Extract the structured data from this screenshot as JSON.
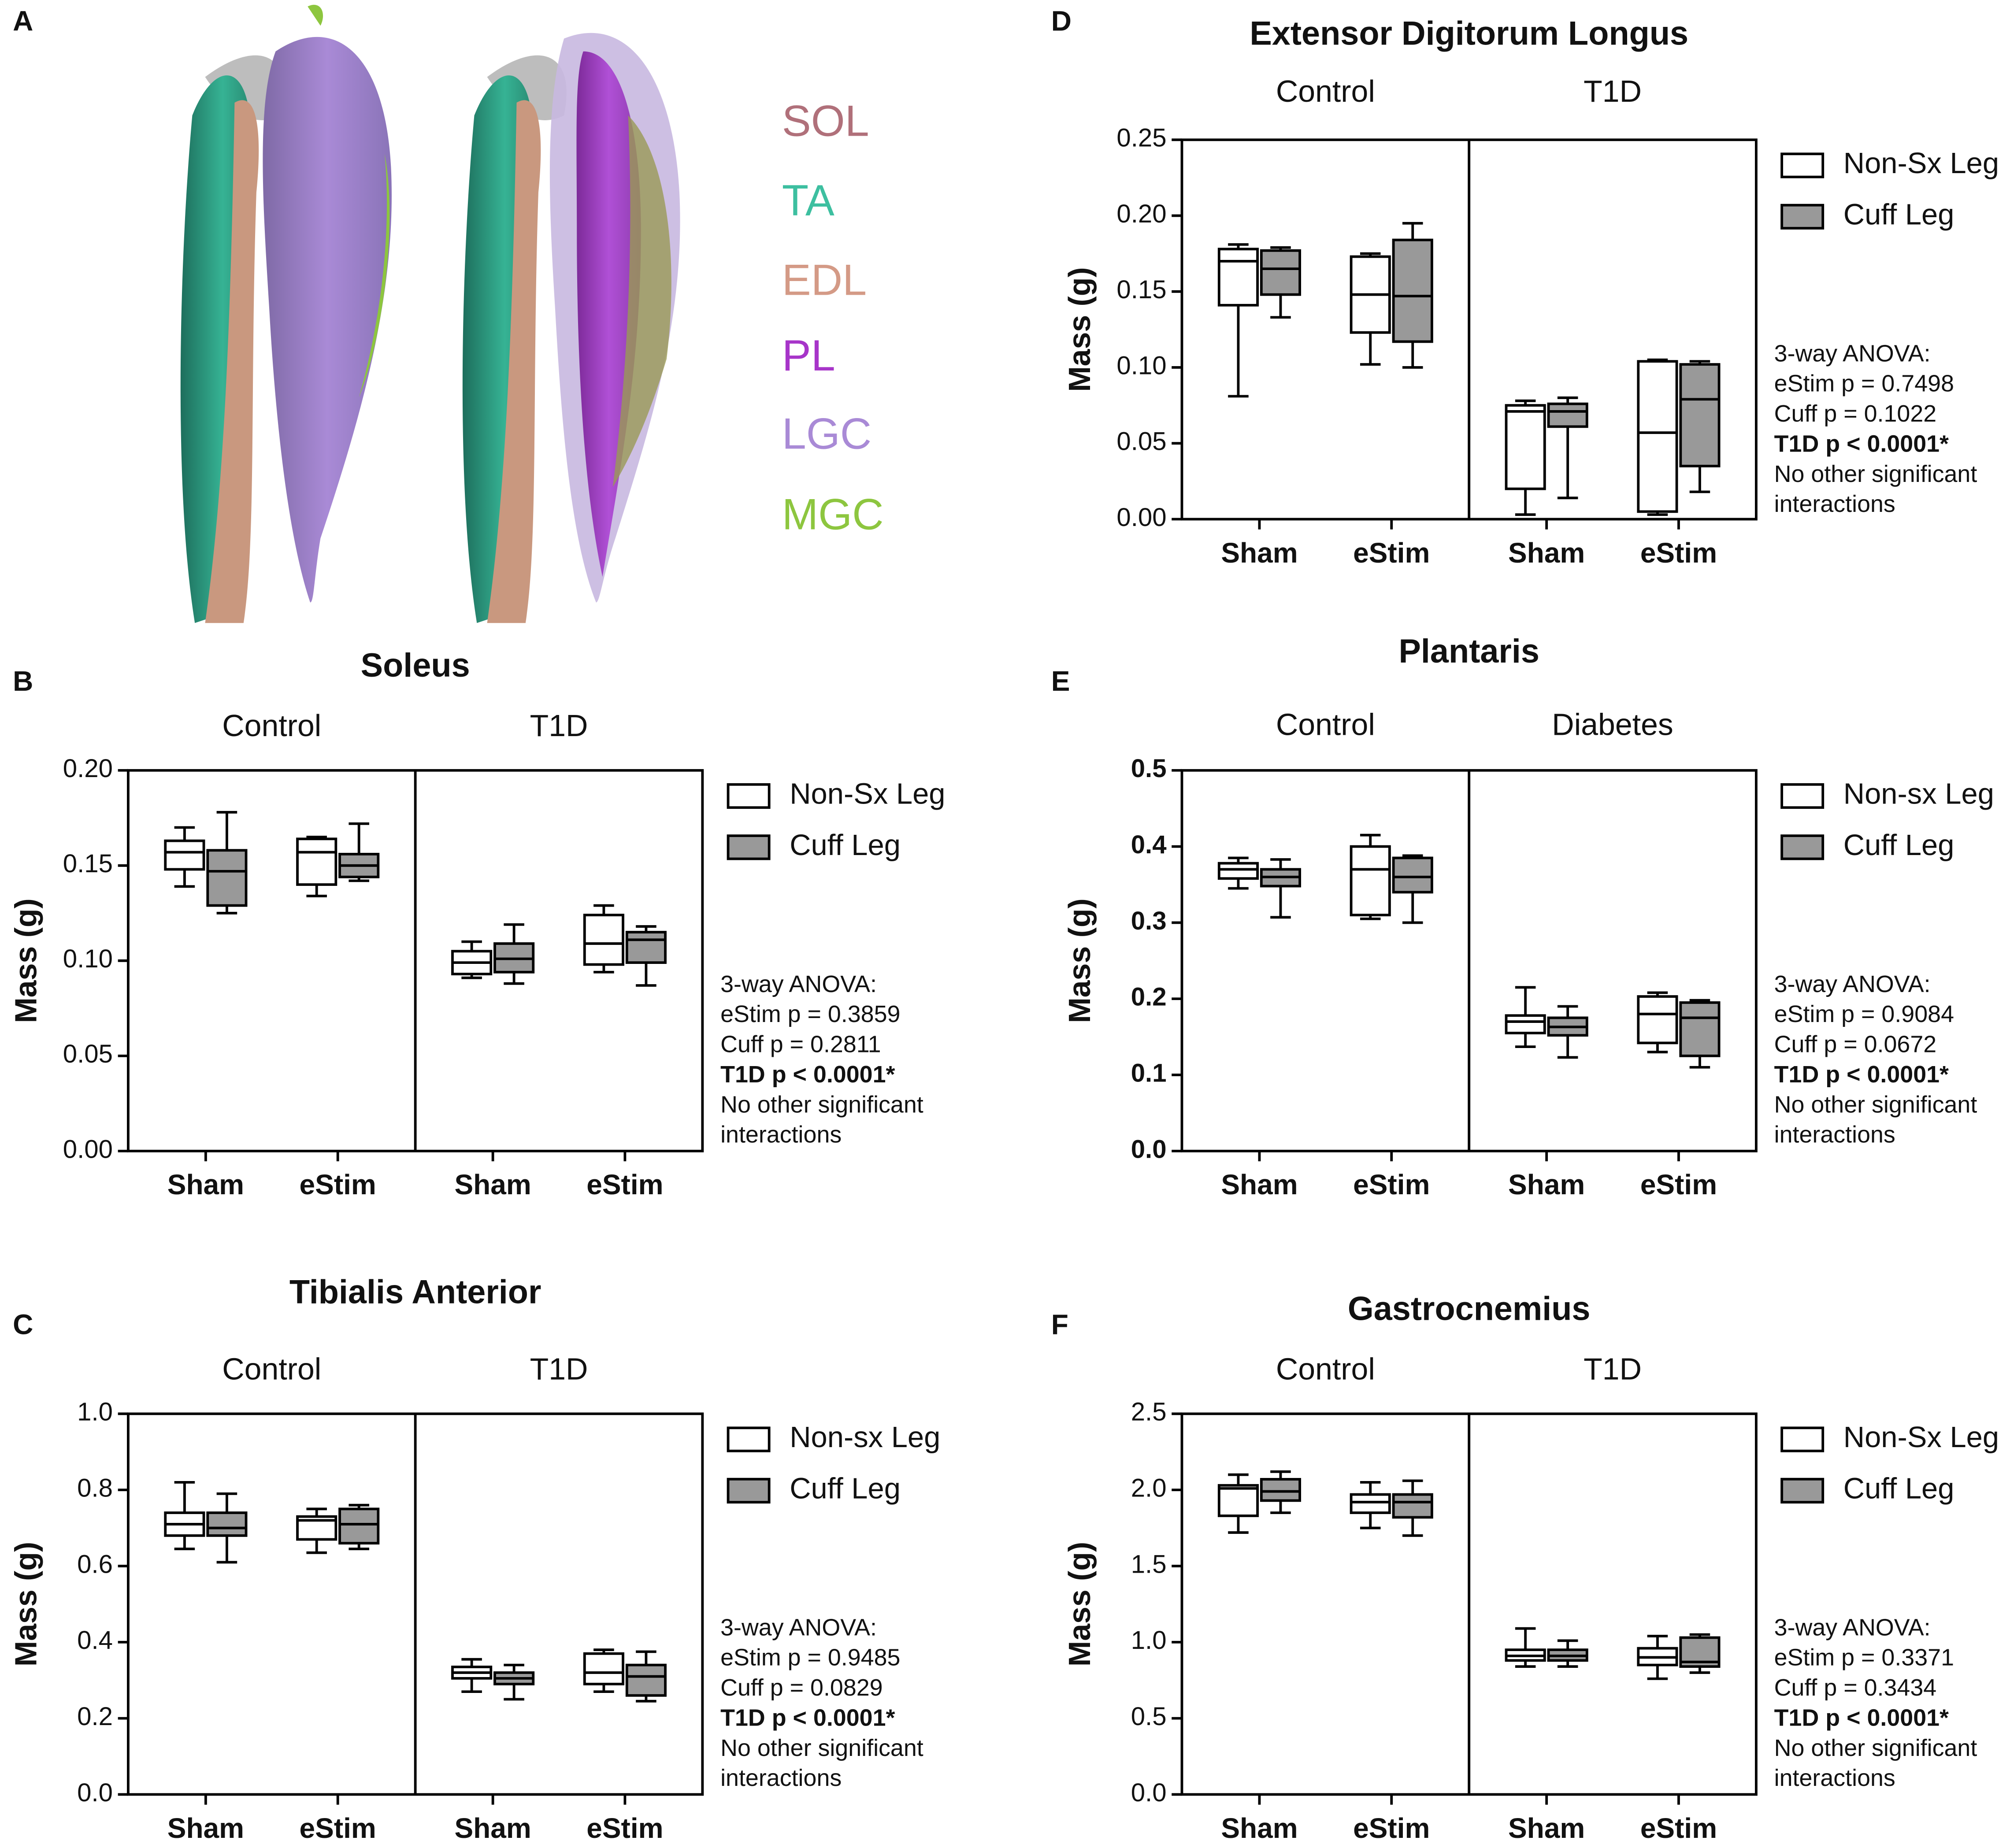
{
  "panel_a": {
    "label": "A",
    "muscles": [
      {
        "text": "SOL",
        "color": "#b0707a"
      },
      {
        "text": "TA",
        "color": "#3dbfa0"
      },
      {
        "text": "EDL",
        "color": "#d49a86"
      },
      {
        "text": "PL",
        "color": "#a735c9"
      },
      {
        "text": "LGC",
        "color": "#a98ad6"
      },
      {
        "text": "MGC",
        "color": "#8dc63f"
      }
    ]
  },
  "chart_data": [
    {
      "type": "box",
      "panel": "B",
      "title": "Soleus",
      "groups": [
        "Control",
        "T1D"
      ],
      "categories": [
        "Sham",
        "eStim",
        "Sham",
        "eStim"
      ],
      "ylabel": "Mass (g)",
      "ylim": [
        0,
        0.2
      ],
      "yticks": [
        {
          "value": 0,
          "label": "0.00"
        },
        0.05,
        {
          "value": 0.1,
          "label": "0.10"
        },
        0.15,
        {
          "value": 0.2,
          "label": "0.20"
        }
      ],
      "series": [
        {
          "name": "Non-Sx Leg",
          "color": "#ffffff",
          "boxes": [
            {
              "min": 0.139,
              "q1": 0.148,
              "median": 0.157,
              "q3": 0.163,
              "max": 0.17
            },
            {
              "min": 0.134,
              "q1": 0.14,
              "median": 0.157,
              "q3": 0.164,
              "max": 0.165
            },
            {
              "min": 0.091,
              "q1": 0.093,
              "median": 0.099,
              "q3": 0.105,
              "max": 0.11
            },
            {
              "min": 0.094,
              "q1": 0.098,
              "median": 0.109,
              "q3": 0.124,
              "max": 0.129
            }
          ]
        },
        {
          "name": "Cuff Leg",
          "color": "#999999",
          "boxes": [
            {
              "min": 0.125,
              "q1": 0.129,
              "median": 0.147,
              "q3": 0.158,
              "max": 0.178
            },
            {
              "min": 0.142,
              "q1": 0.144,
              "median": 0.15,
              "q3": 0.156,
              "max": 0.172
            },
            {
              "min": 0.088,
              "q1": 0.094,
              "median": 0.101,
              "q3": 0.109,
              "max": 0.119
            },
            {
              "min": 0.087,
              "q1": 0.099,
              "median": 0.111,
              "q3": 0.115,
              "max": 0.118
            }
          ]
        }
      ],
      "annotation": [
        {
          "text": "3-way ANOVA:"
        },
        {
          "text": "eStim p = 0.3859"
        },
        {
          "text": "Cuff p = 0.2811"
        },
        {
          "text": "T1D p < 0.0001*",
          "bold": true
        },
        {
          "text": "No other significant"
        },
        {
          "text": "interactions"
        }
      ]
    },
    {
      "type": "box",
      "panel": "C",
      "title": "Tibialis Anterior",
      "groups": [
        "Control",
        "T1D"
      ],
      "categories": [
        "Sham",
        "eStim",
        "Sham",
        "eStim"
      ],
      "ylabel": "Mass (g)",
      "ylim": [
        0,
        1
      ],
      "yticks": [
        {
          "value": 0,
          "label": "0.0"
        },
        0.2,
        0.4,
        0.6,
        0.8,
        {
          "value": 1,
          "label": "1.0"
        }
      ],
      "series": [
        {
          "name": "Non-sx Leg",
          "color": "#ffffff",
          "boxes": [
            {
              "min": 0.645,
              "q1": 0.68,
              "median": 0.71,
              "q3": 0.74,
              "max": 0.82
            },
            {
              "min": 0.635,
              "q1": 0.67,
              "median": 0.72,
              "q3": 0.73,
              "max": 0.75
            },
            {
              "min": 0.27,
              "q1": 0.305,
              "median": 0.32,
              "q3": 0.335,
              "max": 0.355
            },
            {
              "min": 0.27,
              "q1": 0.29,
              "median": 0.32,
              "q3": 0.37,
              "max": 0.38
            }
          ]
        },
        {
          "name": "Cuff Leg",
          "color": "#999999",
          "boxes": [
            {
              "min": 0.61,
              "q1": 0.68,
              "median": 0.7,
              "q3": 0.74,
              "max": 0.79
            },
            {
              "min": 0.645,
              "q1": 0.66,
              "median": 0.71,
              "q3": 0.75,
              "max": 0.76
            },
            {
              "min": 0.25,
              "q1": 0.29,
              "median": 0.305,
              "q3": 0.32,
              "max": 0.34
            },
            {
              "min": 0.245,
              "q1": 0.26,
              "median": 0.31,
              "q3": 0.34,
              "max": 0.375
            }
          ]
        }
      ],
      "annotation": [
        {
          "text": "3-way ANOVA:"
        },
        {
          "text": "eStim p = 0.9485"
        },
        {
          "text": "Cuff p = 0.0829"
        },
        {
          "text": "T1D p < 0.0001*",
          "bold": true
        },
        {
          "text": "No other significant"
        },
        {
          "text": "interactions"
        }
      ]
    },
    {
      "type": "box",
      "panel": "D",
      "title": "Extensor Digitorum Longus",
      "groups": [
        "Control",
        "T1D"
      ],
      "categories": [
        "Sham",
        "eStim",
        "Sham",
        "eStim"
      ],
      "ylabel": "Mass (g)",
      "ylim": [
        0,
        0.25
      ],
      "yticks": [
        {
          "value": 0,
          "label": "0.00"
        },
        0.05,
        {
          "value": 0.1,
          "label": "0.10"
        },
        0.15,
        {
          "value": 0.2,
          "label": "0.20"
        },
        0.25
      ],
      "series": [
        {
          "name": "Non-Sx Leg",
          "color": "#ffffff",
          "boxes": [
            {
              "min": 0.081,
              "q1": 0.141,
              "median": 0.17,
              "q3": 0.178,
              "max": 0.181
            },
            {
              "min": 0.102,
              "q1": 0.123,
              "median": 0.148,
              "q3": 0.173,
              "max": 0.175
            },
            {
              "min": 0.003,
              "q1": 0.02,
              "median": 0.071,
              "q3": 0.075,
              "max": 0.078
            },
            {
              "min": 0.003,
              "q1": 0.005,
              "median": 0.057,
              "q3": 0.104,
              "max": 0.105
            }
          ]
        },
        {
          "name": "Cuff Leg",
          "color": "#999999",
          "boxes": [
            {
              "min": 0.133,
              "q1": 0.148,
              "median": 0.165,
              "q3": 0.177,
              "max": 0.179
            },
            {
              "min": 0.1,
              "q1": 0.117,
              "median": 0.147,
              "q3": 0.184,
              "max": 0.195
            },
            {
              "min": 0.014,
              "q1": 0.061,
              "median": 0.071,
              "q3": 0.076,
              "max": 0.08
            },
            {
              "min": 0.018,
              "q1": 0.035,
              "median": 0.079,
              "q3": 0.102,
              "max": 0.104
            }
          ]
        }
      ],
      "annotation": [
        {
          "text": "3-way ANOVA:"
        },
        {
          "text": "eStim p = 0.7498"
        },
        {
          "text": "Cuff p = 0.1022"
        },
        {
          "text": "T1D p < 0.0001*",
          "bold": true
        },
        {
          "text": "No other significant"
        },
        {
          "text": "interactions"
        }
      ]
    },
    {
      "type": "box",
      "panel": "E",
      "title": "Plantaris",
      "groups": [
        "Control",
        "Diabetes"
      ],
      "categories": [
        "Sham",
        "eStim",
        "Sham",
        "eStim"
      ],
      "ylabel": "Mass (g)",
      "ylim": [
        0,
        0.5
      ],
      "tick_bold": true,
      "yticks": [
        {
          "value": 0,
          "label": "0.0"
        },
        0.1,
        0.2,
        0.3,
        0.4,
        0.5
      ],
      "series": [
        {
          "name": "Non-sx Leg",
          "color": "#ffffff",
          "boxes": [
            {
              "min": 0.345,
              "q1": 0.358,
              "median": 0.37,
              "q3": 0.378,
              "max": 0.385
            },
            {
              "min": 0.305,
              "q1": 0.31,
              "median": 0.37,
              "q3": 0.4,
              "max": 0.415
            },
            {
              "min": 0.137,
              "q1": 0.155,
              "median": 0.17,
              "q3": 0.178,
              "max": 0.215
            },
            {
              "min": 0.13,
              "q1": 0.142,
              "median": 0.18,
              "q3": 0.203,
              "max": 0.208
            }
          ]
        },
        {
          "name": "Cuff Leg",
          "color": "#999999",
          "boxes": [
            {
              "min": 0.307,
              "q1": 0.348,
              "median": 0.36,
              "q3": 0.37,
              "max": 0.383
            },
            {
              "min": 0.3,
              "q1": 0.34,
              "median": 0.36,
              "q3": 0.385,
              "max": 0.388
            },
            {
              "min": 0.123,
              "q1": 0.152,
              "median": 0.163,
              "q3": 0.175,
              "max": 0.19
            },
            {
              "min": 0.11,
              "q1": 0.125,
              "median": 0.175,
              "q3": 0.195,
              "max": 0.198
            }
          ]
        }
      ],
      "annotation": [
        {
          "text": "3-way ANOVA:"
        },
        {
          "text": "eStim p = 0.9084"
        },
        {
          "text": "Cuff p = 0.0672"
        },
        {
          "text": "T1D p < 0.0001*",
          "bold": true
        },
        {
          "text": "No other significant"
        },
        {
          "text": "interactions"
        }
      ]
    },
    {
      "type": "box",
      "panel": "F",
      "title": "Gastrocnemius",
      "groups": [
        "Control",
        "T1D"
      ],
      "categories": [
        "Sham",
        "eStim",
        "Sham",
        "eStim"
      ],
      "ylabel": "Mass (g)",
      "ylim": [
        0,
        2.5
      ],
      "yticks": [
        {
          "value": 0,
          "label": "0.0"
        },
        0.5,
        {
          "value": 1,
          "label": "1.0"
        },
        1.5,
        {
          "value": 2,
          "label": "2.0"
        },
        2.5
      ],
      "series": [
        {
          "name": "Non-Sx Leg",
          "color": "#ffffff",
          "boxes": [
            {
              "min": 1.72,
              "q1": 1.83,
              "median": 2.01,
              "q3": 2.03,
              "max": 2.1
            },
            {
              "min": 1.75,
              "q1": 1.85,
              "median": 1.92,
              "q3": 1.97,
              "max": 2.05
            },
            {
              "min": 0.84,
              "q1": 0.88,
              "median": 0.91,
              "q3": 0.95,
              "max": 1.09
            },
            {
              "min": 0.76,
              "q1": 0.85,
              "median": 0.9,
              "q3": 0.96,
              "max": 1.04
            }
          ]
        },
        {
          "name": "Cuff Leg",
          "color": "#999999",
          "boxes": [
            {
              "min": 1.85,
              "q1": 1.93,
              "median": 1.99,
              "q3": 2.07,
              "max": 2.12
            },
            {
              "min": 1.7,
              "q1": 1.82,
              "median": 1.92,
              "q3": 1.97,
              "max": 2.06
            },
            {
              "min": 0.84,
              "q1": 0.88,
              "median": 0.91,
              "q3": 0.95,
              "max": 1.01
            },
            {
              "min": 0.8,
              "q1": 0.84,
              "median": 0.87,
              "q3": 1.03,
              "max": 1.05
            }
          ]
        }
      ],
      "annotation": [
        {
          "text": "3-way ANOVA:"
        },
        {
          "text": "eStim p = 0.3371"
        },
        {
          "text": "Cuff p = 0.3434"
        },
        {
          "text": "T1D p < 0.0001*",
          "bold": true
        },
        {
          "text": "No other significant"
        },
        {
          "text": "interactions"
        }
      ]
    }
  ]
}
